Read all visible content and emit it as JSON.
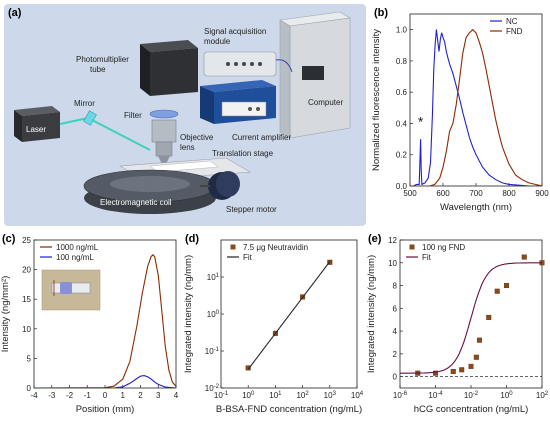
{
  "figure": {
    "panel_a": {
      "letter": "(a)",
      "labels": {
        "signal_acquisition": [
          "Signal acquisition",
          "module"
        ],
        "photomultiplier": [
          "Photomultiplier",
          "tube"
        ],
        "computer": "Computer",
        "laser": "Laser",
        "mirror": "Mirror",
        "filter": "Filter",
        "objective": [
          "Objective",
          "lens"
        ],
        "current_amplifier": "Current amplifier",
        "translation_stage": "Translation stage",
        "em_coil": "Electromagnetic coil",
        "stepper_motor": "Stepper motor"
      },
      "colors": {
        "background": "#cdd9ea",
        "blue_box": "#1f4e9a",
        "laser_beam": "#3fd0c0",
        "coil": "#555b66"
      }
    }
  },
  "chart_data": [
    {
      "id": "b",
      "letter": "(b)",
      "type": "line",
      "xlabel": "Wavelength (nm)",
      "ylabel": "Normalized fluorescence intensity",
      "xlim": [
        500,
        900
      ],
      "ylim": [
        0,
        1.1
      ],
      "xticks": [
        500,
        600,
        700,
        800,
        900
      ],
      "yticks": [
        0.0,
        0.2,
        0.4,
        0.6,
        0.8,
        1.0
      ],
      "ytick_labels": [
        "0.0",
        "0.2",
        "0.4",
        "0.6",
        "0.8",
        "1.0"
      ],
      "annotation": "*",
      "annotation_x": 532,
      "annotation_y": 0.38,
      "legend_position": "top-right",
      "series": [
        {
          "name": "NC",
          "color": "#2020d0",
          "x": [
            510,
            520,
            528,
            530,
            532,
            534,
            536,
            545,
            555,
            562,
            568,
            572,
            576,
            580,
            584,
            588,
            592,
            596,
            600,
            605,
            610,
            615,
            620,
            630,
            640,
            650,
            660,
            670,
            680,
            690,
            700,
            720,
            740,
            760,
            780,
            800,
            830,
            860,
            900
          ],
          "y": [
            0.0,
            0.01,
            0.01,
            0.15,
            0.3,
            0.1,
            0.01,
            0.02,
            0.05,
            0.15,
            0.45,
            0.75,
            0.9,
            1.0,
            0.93,
            0.86,
            0.94,
            0.98,
            0.95,
            0.92,
            0.86,
            0.82,
            0.78,
            0.72,
            0.64,
            0.56,
            0.47,
            0.39,
            0.31,
            0.25,
            0.2,
            0.12,
            0.07,
            0.04,
            0.02,
            0.01,
            0.005,
            0.0,
            0.0
          ]
        },
        {
          "name": "FND",
          "color": "#8b2a00",
          "x": [
            500,
            560,
            575,
            590,
            600,
            610,
            620,
            630,
            640,
            650,
            660,
            670,
            680,
            690,
            700,
            710,
            720,
            730,
            740,
            750,
            760,
            770,
            780,
            800,
            820,
            840,
            860,
            880,
            900
          ],
          "y": [
            0.0,
            0.0,
            0.01,
            0.05,
            0.12,
            0.22,
            0.35,
            0.4,
            0.52,
            0.68,
            0.85,
            0.95,
            0.98,
            1.0,
            0.98,
            0.92,
            0.85,
            0.75,
            0.64,
            0.53,
            0.42,
            0.33,
            0.25,
            0.14,
            0.07,
            0.04,
            0.02,
            0.01,
            0.0
          ]
        }
      ]
    },
    {
      "id": "c",
      "letter": "(c)",
      "type": "line",
      "xlabel": "Position (mm)",
      "ylabel": "Intensity (ng/mm²)",
      "xlim": [
        -4,
        4
      ],
      "ylim": [
        0,
        25
      ],
      "xticks": [
        -4,
        -3,
        -2,
        -1,
        0,
        1,
        2,
        3,
        4
      ],
      "yticks": [
        0,
        5,
        10,
        15,
        20,
        25
      ],
      "legend_position": "top-left",
      "series": [
        {
          "name": "1000 ng/mL",
          "color": "#8b2a00",
          "x": [
            -4,
            0,
            0.5,
            1.0,
            1.4,
            1.8,
            2.1,
            2.4,
            2.6,
            2.7,
            2.8,
            3.0,
            3.2,
            3.4,
            3.6,
            3.8,
            4.0
          ],
          "y": [
            0,
            0.05,
            0.3,
            1.5,
            4.5,
            10.5,
            16,
            20.5,
            22.2,
            22.5,
            22.2,
            19,
            13,
            7,
            3,
            1,
            0.3
          ]
        },
        {
          "name": "100 ng/mL",
          "color": "#2020d0",
          "x": [
            -4,
            0.5,
            1.0,
            1.4,
            1.8,
            2.0,
            2.2,
            2.4,
            2.6,
            2.8,
            3.0,
            3.4,
            4.0
          ],
          "y": [
            0,
            0.0,
            0.2,
            0.8,
            1.6,
            2.0,
            2.1,
            1.9,
            1.5,
            1.0,
            0.6,
            0.15,
            0.0
          ]
        }
      ]
    },
    {
      "id": "d",
      "letter": "(d)",
      "type": "scatter",
      "xlabel": "B-BSA-FND concentration (ng/mL)",
      "ylabel": "Integrated intensity (ng/mm)",
      "xscale": "log",
      "yscale": "log",
      "xlim": [
        0.1,
        10000
      ],
      "ylim": [
        0.01,
        100
      ],
      "xtick_exponents": [
        -1,
        0,
        1,
        2,
        3,
        4
      ],
      "ytick_exponents": [
        -2,
        -1,
        0,
        1
      ],
      "tick_base": "10",
      "legend_position": "top-left",
      "series": [
        {
          "name": "7.5 μg Neutravidin",
          "color": "#8a4a1c",
          "x": [
            1,
            10,
            100,
            1000
          ],
          "y": [
            0.035,
            0.3,
            2.9,
            25
          ]
        },
        {
          "name": "Fit",
          "color": "#222222",
          "line": true,
          "x": [
            1,
            1000
          ],
          "y": [
            0.032,
            26
          ]
        }
      ]
    },
    {
      "id": "e",
      "letter": "(e)",
      "type": "scatter",
      "xlabel": "hCG concentration (ng/mL)",
      "ylabel": "Integrated intensity (ng/mm)",
      "xscale": "log",
      "xlim": [
        1e-06,
        100
      ],
      "ylim": [
        -1,
        12
      ],
      "xtick_exponents": [
        -6,
        -4,
        -2,
        0,
        2
      ],
      "tick_base": "10",
      "yticks": [
        0,
        2,
        4,
        6,
        8,
        10,
        12
      ],
      "legend_position": "top-left",
      "baseline": 0,
      "series": [
        {
          "name": "100 ng FND",
          "color": "#8a4a1c",
          "x": [
            1e-05,
            0.0001,
            0.001,
            0.003,
            0.01,
            0.02,
            0.03,
            0.1,
            0.3,
            1,
            10,
            100
          ],
          "y": [
            0.3,
            0.3,
            0.45,
            0.6,
            0.9,
            1.7,
            3.2,
            5.2,
            7.5,
            8.0,
            10.5,
            10.0
          ]
        },
        {
          "name": "Fit",
          "color": "#6a1040",
          "line": true,
          "fit": "sigmoid",
          "bottom": 0.3,
          "top": 10.0,
          "ec50_log": -2.0,
          "hill": 1.0
        }
      ]
    }
  ]
}
